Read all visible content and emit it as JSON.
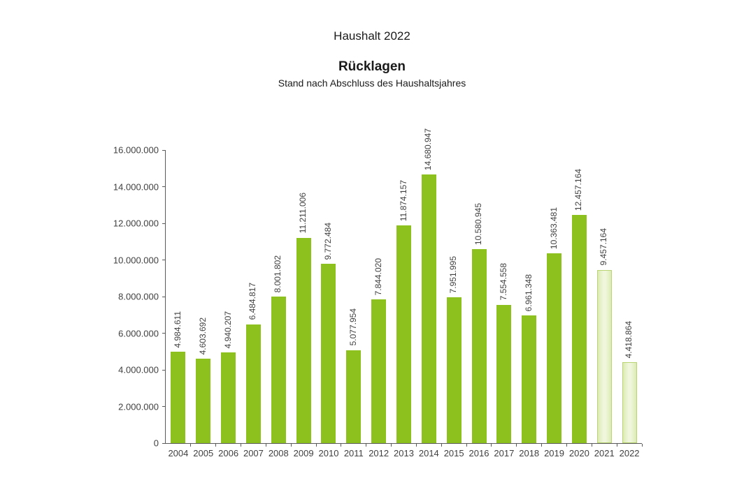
{
  "header": {
    "title": "Haushalt 2022",
    "chart_title": "Rücklagen",
    "chart_subtitle": "Stand nach Abschluss des Haushaltsjahres"
  },
  "chart_data": {
    "type": "bar",
    "title": "Rücklagen",
    "subtitle": "Stand nach Abschluss des Haushaltsjahres",
    "categories": [
      "2004",
      "2005",
      "2006",
      "2007",
      "2008",
      "2009",
      "2010",
      "2011",
      "2012",
      "2013",
      "2014",
      "2015",
      "2016",
      "2017",
      "2018",
      "2019",
      "2020",
      "2021",
      "2022"
    ],
    "values": [
      4984611,
      4603692,
      4940207,
      6484817,
      8001802,
      11211006,
      9772484,
      5077954,
      7844020,
      11874157,
      14680947,
      7951995,
      10580945,
      7554558,
      6961348,
      10363481,
      12457164,
      9457164,
      4418864
    ],
    "value_labels": [
      "4.984.611",
      "4.603.692",
      "4.940.207",
      "6.484.817",
      "8.001.802",
      "11.211.006",
      "9.772.484",
      "5.077.954",
      "7.844.020",
      "11.874.157",
      "14.680.947",
      "7.951.995",
      "10.580.945",
      "7.554.558",
      "6.961.348",
      "10.363.481",
      "12.457.164",
      "9.457.164",
      "4.418.864"
    ],
    "bar_styles": [
      "solid",
      "solid",
      "solid",
      "solid",
      "solid",
      "solid",
      "solid",
      "solid",
      "solid",
      "solid",
      "solid",
      "solid",
      "solid",
      "solid",
      "solid",
      "solid",
      "solid",
      "light",
      "light"
    ],
    "ylim": [
      0,
      16000000
    ],
    "ytick_step": 2000000,
    "ytick_labels": [
      "0",
      "2.000.000",
      "4.000.000",
      "6.000.000",
      "8.000.000",
      "10.000.000",
      "12.000.000",
      "14.000.000",
      "16.000.000"
    ],
    "grid": false,
    "legend": null,
    "value_label_rotation": -90,
    "colors": {
      "bar_solid": "#8dc11d",
      "bar_light_fill": "#eaf2d2",
      "bar_light_border": "#b9d472",
      "axis": "#595959",
      "text": "#404040"
    }
  }
}
